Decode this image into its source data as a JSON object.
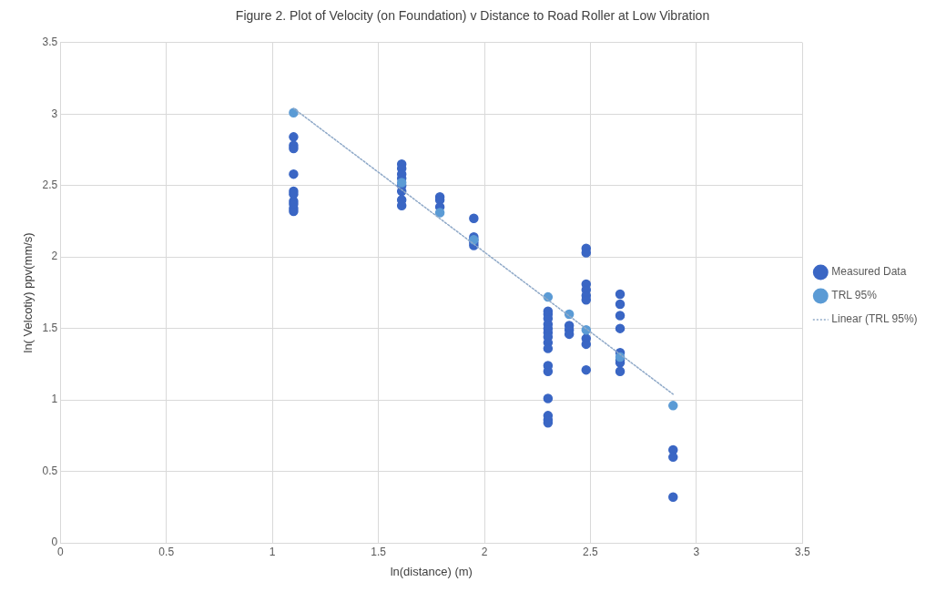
{
  "chart_data": {
    "type": "scatter",
    "title": "Figure 2. Plot of Velocity (on Foundation) v Distance to Road Roller at Low Vibration",
    "xlabel": "ln(distance) (m)",
    "ylabel": "ln( Velcotiy) ppv(mm/s)",
    "xlim": [
      0,
      3.5
    ],
    "xticks": [
      0,
      0.5,
      1,
      1.5,
      2,
      2.5,
      3,
      3.5
    ],
    "ylim": [
      0,
      3.5
    ],
    "yticks": [
      0,
      0.5,
      1,
      1.5,
      2,
      2.5,
      3,
      3.5
    ],
    "grid": true,
    "legend": "right",
    "marker": "circle",
    "series": [
      {
        "name": "Measured Data",
        "color": "#3a66c4",
        "x": [
          1.1,
          1.1,
          1.1,
          1.1,
          1.1,
          1.1,
          1.1,
          1.1,
          1.1,
          1.1,
          1.61,
          1.61,
          1.61,
          1.61,
          1.61,
          1.61,
          1.61,
          1.61,
          1.79,
          1.79,
          1.79,
          1.95,
          1.95,
          1.95,
          1.95,
          1.95,
          2.3,
          2.3,
          2.3,
          2.3,
          2.3,
          2.3,
          2.3,
          2.3,
          2.3,
          2.3,
          2.3,
          2.3,
          2.3,
          2.3,
          2.3,
          2.4,
          2.4,
          2.4,
          2.48,
          2.48,
          2.48,
          2.48,
          2.48,
          2.48,
          2.48,
          2.48,
          2.48,
          2.64,
          2.64,
          2.64,
          2.64,
          2.64,
          2.64,
          2.64,
          2.64,
          2.89,
          2.89,
          2.89
        ],
        "values": [
          2.84,
          2.78,
          2.76,
          2.58,
          2.46,
          2.44,
          2.39,
          2.37,
          2.34,
          2.32,
          2.65,
          2.62,
          2.58,
          2.55,
          2.5,
          2.46,
          2.4,
          2.36,
          2.42,
          2.4,
          2.35,
          2.27,
          2.14,
          2.12,
          2.1,
          2.08,
          1.62,
          1.6,
          1.57,
          1.53,
          1.5,
          1.47,
          1.44,
          1.4,
          1.36,
          1.24,
          1.2,
          1.01,
          0.89,
          0.86,
          0.84,
          1.52,
          1.49,
          1.46,
          2.06,
          2.03,
          1.81,
          1.77,
          1.73,
          1.7,
          1.43,
          1.39,
          1.21,
          1.74,
          1.67,
          1.59,
          1.5,
          1.33,
          1.28,
          1.26,
          1.2,
          0.65,
          0.6,
          0.32
        ]
      },
      {
        "name": "TRL 95%",
        "color": "#5b9bd5",
        "x": [
          1.1,
          1.61,
          1.79,
          1.95,
          2.3,
          2.4,
          2.48,
          2.64,
          2.89
        ],
        "values": [
          3.01,
          2.52,
          2.31,
          2.12,
          1.72,
          1.6,
          1.49,
          1.3,
          0.96
        ]
      },
      {
        "name": "Linear (TRL 95%)",
        "type": "line",
        "color": "#8fa9c8",
        "line_style": "dotted",
        "marker": "none",
        "x": [
          1.1,
          2.89
        ],
        "values": [
          3.04,
          1.04
        ]
      }
    ]
  }
}
